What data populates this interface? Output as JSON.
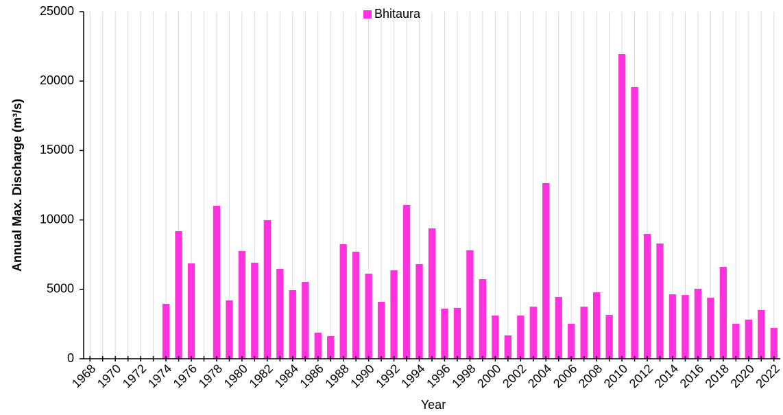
{
  "chart_data": {
    "type": "bar",
    "xlabel": "Year",
    "ylabel": "Annual Max. Discharge (m³/s)",
    "categories": [
      "1968",
      null,
      "1970",
      null,
      "1972",
      null,
      "1974",
      null,
      "1976",
      null,
      "1978",
      null,
      "1980",
      null,
      "1982",
      null,
      "1984",
      null,
      "1986",
      null,
      "1988",
      null,
      "1990",
      null,
      "1992",
      null,
      "1994",
      null,
      "1996",
      null,
      "1998",
      null,
      "2000",
      null,
      "2002",
      null,
      "2004",
      null,
      "2006",
      null,
      "2008",
      null,
      "2010",
      null,
      "2012",
      null,
      "2014",
      null,
      "2016",
      null,
      "2018",
      null,
      "2020",
      null,
      "2022"
    ],
    "series": [
      {
        "name": "Bhitaura",
        "color": "#ff33dd",
        "values": [
          null,
          null,
          null,
          null,
          null,
          null,
          3950,
          9190,
          6870,
          null,
          11020,
          4200,
          7760,
          6920,
          9980,
          6470,
          4940,
          5530,
          1880,
          1630,
          8250,
          7710,
          6130,
          4100,
          6370,
          11070,
          6820,
          9390,
          3610,
          3660,
          7810,
          5730,
          3110,
          1680,
          3110,
          3750,
          12650,
          4450,
          2520,
          3750,
          4790,
          3160,
          21940,
          19570,
          8990,
          8300,
          4640,
          4590,
          5040,
          4400,
          6620,
          2520,
          2820,
          3510,
          2220
        ]
      }
    ],
    "ylim": [
      0,
      25000
    ],
    "yticks": [
      0,
      5000,
      10000,
      15000,
      20000,
      25000
    ],
    "grid": true,
    "legend": "top"
  }
}
